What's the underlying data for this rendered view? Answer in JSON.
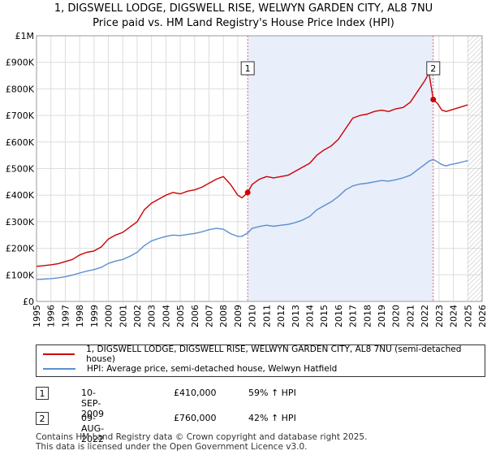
{
  "title_line1": "1, DIGSWELL LODGE, DIGSWELL RISE, WELWYN GARDEN CITY, AL8 7NU",
  "title_line2": "Price paid vs. HM Land Registry's House Price Index (HPI)",
  "colors": {
    "price": "#cc0000",
    "hpi": "#5b8fd0",
    "shade": "#e8eefa",
    "marker_line": "#e06070",
    "hatch": "#bbbbbb"
  },
  "legend": {
    "price_label": "1, DIGSWELL LODGE, DIGSWELL RISE, WELWYN GARDEN CITY, AL8 7NU (semi-detached house)",
    "hpi_label": "HPI: Average price, semi-detached house, Welwyn Hatfield"
  },
  "transactions": [
    {
      "num": "1",
      "date": "10-SEP-2009",
      "price": "£410,000",
      "hpi_change": "59% ↑ HPI"
    },
    {
      "num": "2",
      "date": "09-AUG-2022",
      "price": "£760,000",
      "hpi_change": "42% ↑ HPI"
    }
  ],
  "footer": {
    "line1": "Contains HM Land Registry data © Crown copyright and database right 2025.",
    "line2": "This data is licensed under the Open Government Licence v3.0."
  },
  "chart_data": {
    "type": "line",
    "title": "Price paid vs. HM Land Registry's House Price Index (HPI)",
    "xlabel": "",
    "ylabel": "",
    "xlim": [
      1995,
      2026
    ],
    "ylim": [
      0,
      1000000
    ],
    "y_ticks": [
      {
        "value": 0,
        "label": "£0"
      },
      {
        "value": 100000,
        "label": "£100K"
      },
      {
        "value": 200000,
        "label": "£200K"
      },
      {
        "value": 300000,
        "label": "£300K"
      },
      {
        "value": 400000,
        "label": "£400K"
      },
      {
        "value": 500000,
        "label": "£500K"
      },
      {
        "value": 600000,
        "label": "£600K"
      },
      {
        "value": 700000,
        "label": "£700K"
      },
      {
        "value": 800000,
        "label": "£800K"
      },
      {
        "value": 900000,
        "label": "£900K"
      },
      {
        "value": 1000000,
        "label": "£1M"
      }
    ],
    "x_ticks": [
      "1995",
      "1996",
      "1997",
      "1998",
      "1999",
      "2000",
      "2001",
      "2002",
      "2003",
      "2004",
      "2005",
      "2006",
      "2007",
      "2008",
      "2009",
      "2010",
      "2011",
      "2012",
      "2013",
      "2014",
      "2015",
      "2016",
      "2017",
      "2018",
      "2019",
      "2020",
      "2021",
      "2022",
      "2023",
      "2024",
      "2025",
      "2026"
    ],
    "shaded_range": [
      2009.69,
      2022.6
    ],
    "future_hatch_from": 2025.0,
    "series": [
      {
        "name": "1, DIGSWELL LODGE, DIGSWELL RISE, WELWYN GARDEN CITY, AL8 7NU (semi-detached house)",
        "x": [
          1995.0,
          1995.5,
          1996.0,
          1996.5,
          1997.0,
          1997.5,
          1998.0,
          1998.5,
          1999.0,
          1999.5,
          2000.0,
          2000.5,
          2001.0,
          2001.5,
          2002.0,
          2002.5,
          2003.0,
          2003.5,
          2004.0,
          2004.5,
          2005.0,
          2005.5,
          2006.0,
          2006.5,
          2007.0,
          2007.5,
          2008.0,
          2008.5,
          2009.0,
          2009.3,
          2009.69,
          2010.0,
          2010.5,
          2011.0,
          2011.5,
          2012.0,
          2012.5,
          2013.0,
          2013.5,
          2014.0,
          2014.5,
          2015.0,
          2015.5,
          2016.0,
          2016.5,
          2017.0,
          2017.5,
          2018.0,
          2018.5,
          2019.0,
          2019.5,
          2020.0,
          2020.5,
          2021.0,
          2021.5,
          2022.0,
          2022.3,
          2022.6,
          2022.9,
          2023.2,
          2023.5,
          2023.8,
          2024.1,
          2024.4,
          2024.7,
          2025.0
        ],
        "values": [
          132000,
          135000,
          138000,
          142000,
          150000,
          158000,
          175000,
          185000,
          190000,
          205000,
          235000,
          250000,
          260000,
          280000,
          300000,
          345000,
          370000,
          385000,
          400000,
          410000,
          405000,
          415000,
          420000,
          430000,
          445000,
          460000,
          470000,
          440000,
          400000,
          390000,
          410000,
          440000,
          460000,
          470000,
          465000,
          470000,
          475000,
          490000,
          505000,
          520000,
          550000,
          570000,
          585000,
          610000,
          650000,
          690000,
          700000,
          705000,
          715000,
          720000,
          715000,
          725000,
          730000,
          750000,
          790000,
          830000,
          860000,
          760000,
          745000,
          720000,
          715000,
          720000,
          725000,
          730000,
          735000,
          740000
        ]
      },
      {
        "name": "HPI: Average price, semi-detached house, Welwyn Hatfield",
        "x": [
          1995.0,
          1995.5,
          1996.0,
          1996.5,
          1997.0,
          1997.5,
          1998.0,
          1998.5,
          1999.0,
          1999.5,
          2000.0,
          2000.5,
          2001.0,
          2001.5,
          2002.0,
          2002.5,
          2003.0,
          2003.5,
          2004.0,
          2004.5,
          2005.0,
          2005.5,
          2006.0,
          2006.5,
          2007.0,
          2007.5,
          2008.0,
          2008.5,
          2009.0,
          2009.3,
          2009.69,
          2010.0,
          2010.5,
          2011.0,
          2011.5,
          2012.0,
          2012.5,
          2013.0,
          2013.5,
          2014.0,
          2014.5,
          2015.0,
          2015.5,
          2016.0,
          2016.5,
          2017.0,
          2017.5,
          2018.0,
          2018.5,
          2019.0,
          2019.5,
          2020.0,
          2020.5,
          2021.0,
          2021.5,
          2022.0,
          2022.3,
          2022.6,
          2022.9,
          2023.2,
          2023.5,
          2023.8,
          2024.1,
          2024.4,
          2024.7,
          2025.0
        ],
        "values": [
          83000,
          84000,
          86000,
          89000,
          93000,
          99000,
          107000,
          114000,
          120000,
          128000,
          143000,
          152000,
          158000,
          170000,
          185000,
          210000,
          228000,
          237000,
          245000,
          250000,
          248000,
          252000,
          256000,
          262000,
          270000,
          275000,
          272000,
          255000,
          245000,
          245000,
          258000,
          275000,
          282000,
          287000,
          283000,
          287000,
          290000,
          297000,
          306000,
          320000,
          345000,
          360000,
          375000,
          395000,
          420000,
          435000,
          442000,
          445000,
          450000,
          455000,
          453000,
          458000,
          465000,
          475000,
          495000,
          515000,
          528000,
          535000,
          525000,
          515000,
          510000,
          515000,
          518000,
          522000,
          526000,
          530000
        ]
      }
    ],
    "annotations": [
      {
        "label": "1",
        "x": 2009.69,
        "value": 410000
      },
      {
        "label": "2",
        "x": 2022.6,
        "value": 760000
      }
    ]
  }
}
